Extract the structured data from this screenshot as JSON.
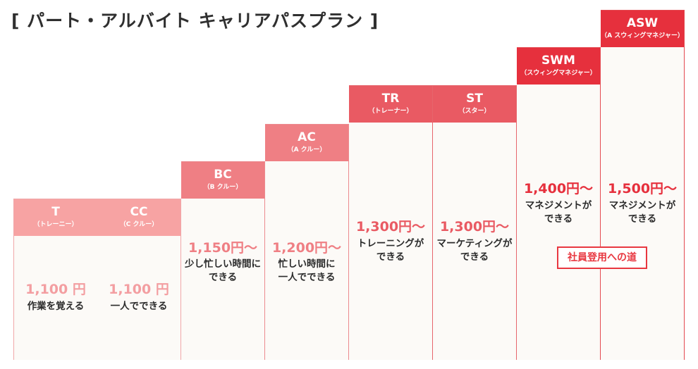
{
  "title": "[ パート・アルバイト キャリアパスプラン ]",
  "path_label": "社員登用への道",
  "colors": {
    "tier1": "#f7a3a3",
    "tier2": "#ef7f84",
    "tier3": "#e95a63",
    "tier4": "#e6303d"
  },
  "columns": [
    {
      "code": "T",
      "sub": "（トレーニー）",
      "wage": "1,100 円",
      "desc": [
        "作業を覚える"
      ]
    },
    {
      "code": "CC",
      "sub": "（C クルー）",
      "wage": "1,100 円",
      "desc": [
        "一人でできる"
      ]
    },
    {
      "code": "BC",
      "sub": "（B クルー）",
      "wage": "1,150円～",
      "desc": [
        "少し忙しい時間に",
        "できる"
      ]
    },
    {
      "code": "AC",
      "sub": "（A クルー）",
      "wage": "1,200円～",
      "desc": [
        "忙しい時間に",
        "一人でできる"
      ]
    },
    {
      "code": "TR",
      "sub": "（トレーナー）",
      "wage": "1,300円～",
      "desc": [
        "トレーニングが",
        "できる"
      ]
    },
    {
      "code": "ST",
      "sub": "（スター）",
      "wage": "1,300円～",
      "desc": [
        "マーケティングが",
        "できる"
      ]
    },
    {
      "code": "SWM",
      "sub": "（スウィングマネジャー）",
      "wage": "1,400円～",
      "desc": [
        "マネジメントが",
        "できる"
      ]
    },
    {
      "code": "ASW",
      "sub": "（A スウィングマネジャー）",
      "wage": "1,500円～",
      "desc": [
        "マネジメントが",
        "できる"
      ]
    }
  ]
}
